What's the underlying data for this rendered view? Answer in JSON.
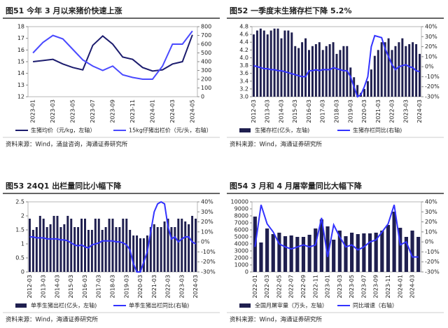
{
  "chart_data": [
    {
      "type": "combo",
      "title": "图51 今年 3 月以来猪价快速上涨",
      "source": "资料来源：Wind，涌益咨询，海通证券研究所",
      "categories": [
        "2023-01",
        null,
        "2023-03",
        null,
        "2023-05",
        null,
        "2023-07",
        null,
        "2023-09",
        null,
        "2023-11",
        null,
        "2024-01",
        null,
        "2024-03",
        null,
        "2024-05"
      ],
      "series": [
        {
          "name": "生猪均价（元/kg，左轴）",
          "type": "line",
          "color": "#1c1c6e",
          "values": [
            15.0,
            15.1,
            15.2,
            14.8,
            14.5,
            14.3,
            16.4,
            17.2,
            16.5,
            15.4,
            15.2,
            14.5,
            14.2,
            14.3,
            14.8,
            15.0,
            17.3
          ]
        },
        {
          "name": "15kg仔猪出栏价（元/头，右轴）",
          "type": "line",
          "color": "#4a4aff",
          "axis": "y2",
          "values": [
            500,
            620,
            700,
            660,
            540,
            420,
            350,
            300,
            350,
            250,
            220,
            200,
            200,
            350,
            600,
            600,
            750
          ]
        }
      ],
      "ylim": [
        12,
        18
      ],
      "yticks": [
        12,
        13,
        14,
        15,
        16,
        17,
        18
      ],
      "y2lim": [
        0,
        800
      ],
      "y2ticks": [
        0,
        100,
        200,
        300,
        400,
        500,
        600,
        700,
        800
      ]
    },
    {
      "type": "combo",
      "title": "图52 一季度末生猪存栏下降 5.2%",
      "source": "资料来源：Wind，海通证券研究所",
      "categories": [
        "2012-03",
        null,
        null,
        null,
        "2013-03",
        null,
        null,
        null,
        "2014-03",
        null,
        null,
        null,
        "2015-03",
        null,
        null,
        null,
        "2016-03",
        null,
        null,
        null,
        "2017-03",
        null,
        null,
        null,
        "2018-03",
        null,
        null,
        null,
        "2019-03",
        null,
        null,
        null,
        "2020-03",
        null,
        null,
        null,
        "2021-03",
        null,
        null,
        null,
        "2022-03",
        null,
        null,
        null,
        "2023-03",
        null,
        null,
        null,
        "2024-03"
      ],
      "series": [
        {
          "name": "生猪存栏(亿头，左轴)",
          "type": "bar",
          "color": "#1f1f4f",
          "values": [
            4.6,
            4.7,
            4.75,
            4.7,
            4.6,
            4.7,
            4.75,
            4.75,
            4.5,
            4.7,
            4.7,
            4.65,
            4.3,
            4.25,
            4.4,
            4.5,
            4.2,
            4.3,
            4.35,
            4.4,
            4.2,
            4.3,
            4.35,
            4.4,
            4.1,
            4.2,
            4.3,
            4.3,
            3.75,
            3.5,
            3.3,
            3.1,
            3.2,
            3.4,
            3.7,
            4.05,
            4.2,
            4.4,
            4.4,
            4.5,
            4.2,
            4.3,
            4.4,
            4.5,
            4.3,
            4.35,
            4.4,
            4.35,
            4.1
          ]
        },
        {
          "name": "生猪存栏同比(右轴)",
          "type": "line",
          "color": "#3333ff",
          "axis": "y2",
          "values": [
            1,
            0,
            -1,
            -2,
            -2,
            -3,
            -3,
            -4,
            -4,
            -5,
            -6,
            -7,
            -8,
            -9,
            -10,
            -10,
            -4,
            -4,
            -3,
            -4,
            -3,
            -3,
            -3,
            -1,
            -2,
            -3,
            -4,
            -4,
            -10,
            -20,
            -30,
            -28,
            -20,
            -10,
            20,
            31,
            30,
            29,
            18,
            10,
            2,
            -3,
            0,
            1,
            2,
            0,
            -1,
            -4,
            -5
          ]
        }
      ],
      "ylim": [
        3,
        4.8
      ],
      "yticks": [
        {
          "value": 3,
          "label": "3.0"
        },
        3.2,
        3.4,
        3.6,
        3.8,
        {
          "value": 4,
          "label": "4.0"
        },
        4.2,
        4.4,
        4.6,
        4.8
      ],
      "y2lim": [
        -30,
        40
      ],
      "y2ticks": [
        {
          "value": -30,
          "label": "-30%"
        },
        {
          "value": -20,
          "label": "-20%"
        },
        {
          "value": -10,
          "label": "-10%"
        },
        {
          "value": 0,
          "label": "0%"
        },
        {
          "value": 10,
          "label": "10%"
        },
        {
          "value": 20,
          "label": "20%"
        },
        {
          "value": 30,
          "label": "30%"
        },
        {
          "value": 40,
          "label": "40%"
        }
      ]
    },
    {
      "type": "combo",
      "title": "图53 24Q1 出栏量同比小幅下降",
      "source": "资料来源：Wind，海通证券研究所",
      "categories": [
        "2012-03",
        null,
        null,
        null,
        "2013-03",
        null,
        null,
        null,
        "2014-03",
        null,
        null,
        null,
        "2015-03",
        null,
        null,
        null,
        "2016-03",
        null,
        null,
        null,
        "2017-03",
        null,
        null,
        null,
        "2018-03",
        null,
        null,
        null,
        "2019-03",
        null,
        null,
        null,
        "2020-03",
        null,
        null,
        null,
        "2021-03",
        null,
        null,
        null,
        "2022-03",
        null,
        null,
        null,
        "2023-03",
        null,
        null,
        null,
        "2024-03"
      ],
      "series": [
        {
          "name": "单季生猪出栏(亿头，左轴)",
          "type": "bar",
          "color": "#1f1f4f",
          "values": [
            1.9,
            1.5,
            1.6,
            2.0,
            1.9,
            1.6,
            1.7,
            2.0,
            2.0,
            1.6,
            1.7,
            2.0,
            1.9,
            1.6,
            1.6,
            1.9,
            1.9,
            1.5,
            1.5,
            1.9,
            1.9,
            1.5,
            1.6,
            1.9,
            1.9,
            1.6,
            1.6,
            1.9,
            1.9,
            1.5,
            1.3,
            1.3,
            1.2,
            1.2,
            1.3,
            1.6,
            1.7,
            1.6,
            1.6,
            1.8,
            1.9,
            1.6,
            1.6,
            1.9,
            1.9,
            1.8,
            1.7,
            2.0,
            1.9
          ]
        },
        {
          "name": "单季生猪出栏同比(右轴)",
          "type": "line",
          "color": "#3333ff",
          "axis": "y2",
          "values": [
            5,
            5,
            4,
            4,
            4,
            3,
            3,
            3,
            3,
            2,
            2,
            1,
            -1,
            -3,
            -4,
            -3,
            -5,
            -6,
            -3,
            -2,
            -1,
            1,
            1,
            1,
            1,
            0,
            0,
            -1,
            -3,
            -8,
            -22,
            -30,
            -30,
            -20,
            -10,
            10,
            30,
            38,
            40,
            38,
            15,
            3,
            5,
            0,
            3,
            5,
            5,
            0,
            -2
          ]
        }
      ],
      "ylim": [
        0,
        2.5
      ],
      "yticks": [
        0,
        0.5,
        1,
        1.5,
        2,
        2.5
      ],
      "y2lim": [
        -30,
        40
      ],
      "y2ticks": [
        {
          "value": -30,
          "label": "-30%"
        },
        {
          "value": -20,
          "label": "-20%"
        },
        {
          "value": -10,
          "label": "-10%"
        },
        {
          "value": 0,
          "label": "0%"
        },
        {
          "value": 10,
          "label": "10%"
        },
        {
          "value": 20,
          "label": "20%"
        },
        {
          "value": 30,
          "label": "30%"
        },
        {
          "value": 40,
          "label": "40%"
        }
      ]
    },
    {
      "type": "combo",
      "title": "图54 3 月和 4 月屠宰量同比大幅下降",
      "source": "资料来源：Wind，海通证券研究所",
      "categories": [
        "2022-01",
        null,
        "2022-03",
        null,
        "2022-05",
        null,
        "2022-07",
        null,
        "2022-09",
        null,
        "2022-11",
        null,
        "2023-01",
        null,
        "2023-03",
        null,
        "2023-05",
        null,
        "2023-07",
        null,
        "2023-09",
        null,
        "2023-11",
        null,
        "2024-01",
        null,
        "2024-03",
        null
      ],
      "series": [
        {
          "name": "全国月屠宰量（万头，左轴）",
          "type": "bar",
          "color": "#1f1f4f",
          "values": [
            7900,
            4200,
            6200,
            5400,
            5600,
            5100,
            5200,
            5000,
            5000,
            5300,
            6200,
            7500,
            6500,
            4600,
            5900,
            5100,
            5600,
            5400,
            5500,
            5500,
            5600,
            5900,
            6700,
            8600,
            6300,
            5000,
            5900,
            5000
          ]
        },
        {
          "name": "同比增速（右轴）",
          "type": "line",
          "color": "#3333ff",
          "axis": "y2",
          "values": [
            -5,
            37,
            18,
            10,
            -2,
            -5,
            -7,
            -5,
            -3,
            -5,
            -3,
            24,
            -15,
            17,
            5,
            -5,
            -3,
            -8,
            -5,
            0,
            2,
            10,
            18,
            37,
            -3,
            0,
            -15,
            -15
          ]
        }
      ],
      "ylim": [
        0,
        10000
      ],
      "yticks": [
        0,
        1000,
        2000,
        3000,
        4000,
        5000,
        6000,
        7000,
        8000,
        9000,
        10000
      ],
      "y2lim": [
        -30,
        40
      ],
      "y2ticks": [
        {
          "value": -30,
          "label": "-30%"
        },
        {
          "value": -20,
          "label": "-20%"
        },
        {
          "value": -10,
          "label": "-10%"
        },
        {
          "value": 0,
          "label": "0%"
        },
        {
          "value": 10,
          "label": "10%"
        },
        {
          "value": 20,
          "label": "20%"
        },
        {
          "value": 30,
          "label": "30%"
        },
        {
          "value": 40,
          "label": "40%"
        }
      ]
    }
  ]
}
